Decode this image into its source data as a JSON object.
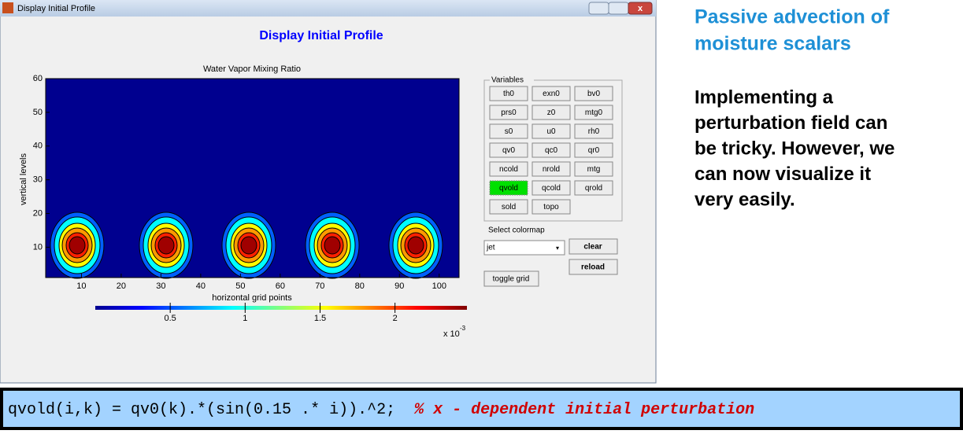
{
  "window": {
    "title": "Display Initial Profile"
  },
  "figure": {
    "title": "Display Initial Profile"
  },
  "plot": {
    "type": "contour",
    "title": "Water Vapor Mixing Ratio",
    "xlabel": "horizontal grid points",
    "ylabel": "vertical levels",
    "xlim": [
      1,
      105
    ],
    "ylim": [
      1,
      60
    ],
    "xticks": [
      10,
      20,
      30,
      40,
      50,
      60,
      70,
      80,
      90,
      100
    ],
    "yticks": [
      10,
      20,
      30,
      40,
      50,
      60
    ],
    "background": "#00008f"
  },
  "colorbar": {
    "lim": [
      0,
      2.48
    ],
    "ticks": [
      0.5,
      1,
      1.5,
      2
    ],
    "multiplier": "x 10",
    "exponent": "-3"
  },
  "panel": {
    "title": "Variables",
    "buttons": [
      {
        "label": "th0"
      },
      {
        "label": "exn0"
      },
      {
        "label": "bv0"
      },
      {
        "label": "prs0"
      },
      {
        "label": "z0"
      },
      {
        "label": "mtg0"
      },
      {
        "label": "s0"
      },
      {
        "label": "u0"
      },
      {
        "label": "rh0"
      },
      {
        "label": "qv0"
      },
      {
        "label": "qc0"
      },
      {
        "label": "qr0"
      },
      {
        "label": "ncold"
      },
      {
        "label": "nrold"
      },
      {
        "label": "mtg"
      },
      {
        "label": "qvold",
        "active": true
      },
      {
        "label": "qcold"
      },
      {
        "label": "qrold"
      },
      {
        "label": "sold"
      },
      {
        "label": "topo"
      }
    ],
    "active_color": "#00e000"
  },
  "controls": {
    "colormap_label": "Select colormap",
    "colormap": "jet",
    "clear": "clear",
    "reload": "reload",
    "toggle_grid": "toggle grid"
  },
  "side": {
    "heading": [
      "Passive advection of",
      "moisture scalars"
    ],
    "body": [
      "Implementing a",
      "perturbation field can",
      "be tricky. However, we",
      "can now visualize it",
      "very easily."
    ]
  },
  "code": {
    "statement": "qvold(i,k) = qv0(k).*(sin(0.15 .* i)).^2;",
    "comment": "% x - dependent initial perturbation"
  }
}
